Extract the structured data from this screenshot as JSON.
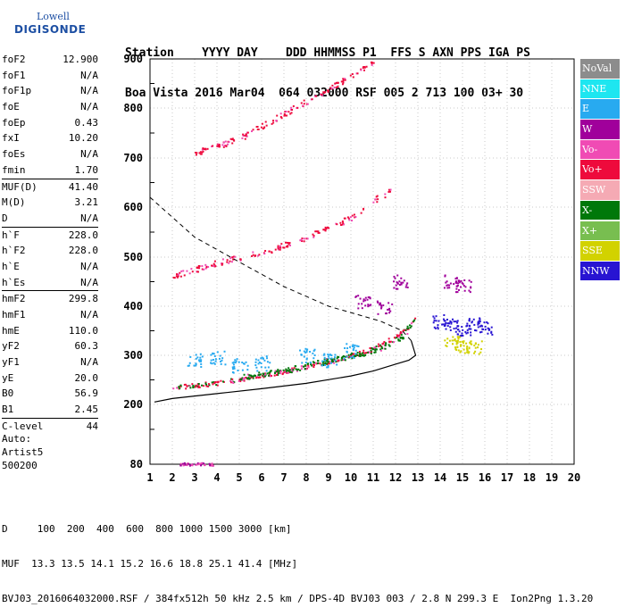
{
  "logo": {
    "line1": "Lowell",
    "line2": "DIGISONDE"
  },
  "header": {
    "line1": "Station    YYYY DAY    DDD HHMMSS P1  FFS S AXN PPS IGA PS",
    "line2": "Boa Vista 2016 Mar04  064 032000 RSF 005 2 713 100 03+ 30"
  },
  "params": [
    {
      "k": "foF2",
      "v": "12.900"
    },
    {
      "k": "foF1",
      "v": "N/A"
    },
    {
      "k": "foF1p",
      "v": "N/A"
    },
    {
      "k": "foE",
      "v": "N/A"
    },
    {
      "k": "foEp",
      "v": "0.43"
    },
    {
      "k": "fxI",
      "v": "10.20"
    },
    {
      "k": "foEs",
      "v": "N/A"
    },
    {
      "k": "fmin",
      "v": "1.70"
    },
    {
      "k": "MUF(D)",
      "v": "41.40",
      "sep": true
    },
    {
      "k": "M(D)",
      "v": "3.21"
    },
    {
      "k": "D",
      "v": "N/A"
    },
    {
      "k": "h`F",
      "v": "228.0",
      "sep": true
    },
    {
      "k": "h`F2",
      "v": "228.0"
    },
    {
      "k": "h`E",
      "v": "N/A"
    },
    {
      "k": "h`Es",
      "v": "N/A"
    },
    {
      "k": "hmF2",
      "v": "299.8",
      "sep": true
    },
    {
      "k": "hmF1",
      "v": "N/A"
    },
    {
      "k": "hmE",
      "v": "110.0"
    },
    {
      "k": "yF2",
      "v": "60.3"
    },
    {
      "k": "yF1",
      "v": "N/A"
    },
    {
      "k": "yE",
      "v": "20.0"
    },
    {
      "k": "B0",
      "v": "56.9"
    },
    {
      "k": "B1",
      "v": "2.45"
    },
    {
      "k": "C-level",
      "v": "44",
      "sep": true
    }
  ],
  "auto": {
    "line1": "Auto:",
    "line2": "Artist5",
    "line3": "500200"
  },
  "legend": [
    {
      "label": "NoVal",
      "color": "#8c8c8c"
    },
    {
      "label": "NNE",
      "color": "#1ee6f0"
    },
    {
      "label": "E",
      "color": "#28aaf0"
    },
    {
      "label": "W",
      "color": "#a0009b"
    },
    {
      "label": "Vo-",
      "color": "#f04bb4"
    },
    {
      "label": "Vo+",
      "color": "#ee0a3c"
    },
    {
      "label": "SSW",
      "color": "#f5aab4"
    },
    {
      "label": "X-",
      "color": "#00780a"
    },
    {
      "label": "X+",
      "color": "#78be50"
    },
    {
      "label": "SSE",
      "color": "#d2d200"
    },
    {
      "label": "NNW",
      "color": "#2814d2"
    }
  ],
  "footer": {
    "line1": "D     100  200  400  600  800 1000 1500 3000 [km]",
    "line2": "MUF  13.3 13.5 14.1 15.2 16.6 18.8 25.1 41.4 [MHz]",
    "line3": "BVJ03_2016064032000.RSF / 384fx512h 50 kHz 2.5 km / DPS-4D BVJ03 003 / 2.8 N 299.3 E  Ion2Png 1.3.20"
  },
  "chart_data": {
    "type": "scatter",
    "xlim": [
      1,
      20
    ],
    "ylim": [
      80,
      900
    ],
    "x_ticks": [
      1,
      2,
      3,
      4,
      5,
      6,
      7,
      8,
      9,
      10,
      11,
      12,
      13,
      14,
      15,
      16,
      17,
      18,
      19,
      20
    ],
    "y_ticks": [
      80,
      200,
      300,
      400,
      500,
      600,
      700,
      800,
      900
    ],
    "grid": true,
    "series": [
      {
        "name": "O-trace F2 (Vo+)",
        "color": "#ee0a3c",
        "points": [
          [
            2,
            235
          ],
          [
            3,
            240
          ],
          [
            4,
            245
          ],
          [
            5,
            252
          ],
          [
            6,
            260
          ],
          [
            7,
            268
          ],
          [
            8,
            278
          ],
          [
            9,
            288
          ],
          [
            10,
            300
          ],
          [
            11,
            315
          ],
          [
            12,
            340
          ],
          [
            12.6,
            360
          ],
          [
            12.9,
            380
          ]
        ]
      },
      {
        "name": "Multihop 2F",
        "color": "#ee0a3c",
        "points": [
          [
            2,
            462
          ],
          [
            4,
            490
          ],
          [
            6,
            510
          ],
          [
            8,
            540
          ],
          [
            10,
            580
          ],
          [
            11,
            615
          ],
          [
            11.8,
            635
          ]
        ]
      },
      {
        "name": "Multihop 3F",
        "color": "#ee0a3c",
        "points": [
          [
            3,
            710
          ],
          [
            5,
            740
          ],
          [
            7,
            790
          ],
          [
            9,
            840
          ],
          [
            10.5,
            880
          ],
          [
            11,
            895
          ]
        ]
      },
      {
        "name": "X-trace (X-)",
        "color": "#00780a",
        "points": [
          [
            5,
            255
          ],
          [
            7,
            270
          ],
          [
            9,
            290
          ],
          [
            10.5,
            305
          ],
          [
            11.5,
            320
          ],
          [
            12.5,
            345
          ]
        ]
      },
      {
        "name": "NNW cluster",
        "color": "#2814d2",
        "points": [
          [
            14,
            370
          ],
          [
            14.5,
            360
          ],
          [
            15,
            355
          ],
          [
            15.5,
            365
          ],
          [
            16,
            355
          ]
        ]
      },
      {
        "name": "SSE cluster",
        "color": "#d2d200",
        "points": [
          [
            14.5,
            325
          ],
          [
            15,
            320
          ],
          [
            15.5,
            318
          ]
        ]
      },
      {
        "name": "W cluster",
        "color": "#a0009b",
        "points": [
          [
            12.2,
            450
          ],
          [
            14.5,
            450
          ],
          [
            15,
            445
          ],
          [
            10.5,
            410
          ],
          [
            11.5,
            400
          ]
        ]
      },
      {
        "name": "E scatter",
        "color": "#28aaf0",
        "points": [
          [
            3,
            290
          ],
          [
            4,
            295
          ],
          [
            5,
            280
          ],
          [
            6,
            285
          ],
          [
            8,
            300
          ],
          [
            9,
            290
          ],
          [
            10,
            310
          ]
        ]
      }
    ],
    "profile": [
      [
        1.2,
        205
      ],
      [
        2,
        212
      ],
      [
        4,
        222
      ],
      [
        6,
        232
      ],
      [
        8,
        243
      ],
      [
        10,
        258
      ],
      [
        11,
        268
      ],
      [
        12,
        282
      ],
      [
        12.6,
        290
      ],
      [
        12.9,
        300
      ],
      [
        12.7,
        330
      ],
      [
        12.3,
        350
      ],
      [
        11.3,
        370
      ],
      [
        9,
        400
      ],
      [
        7,
        440
      ],
      [
        5,
        490
      ],
      [
        3,
        540
      ],
      [
        1,
        620
      ]
    ]
  }
}
